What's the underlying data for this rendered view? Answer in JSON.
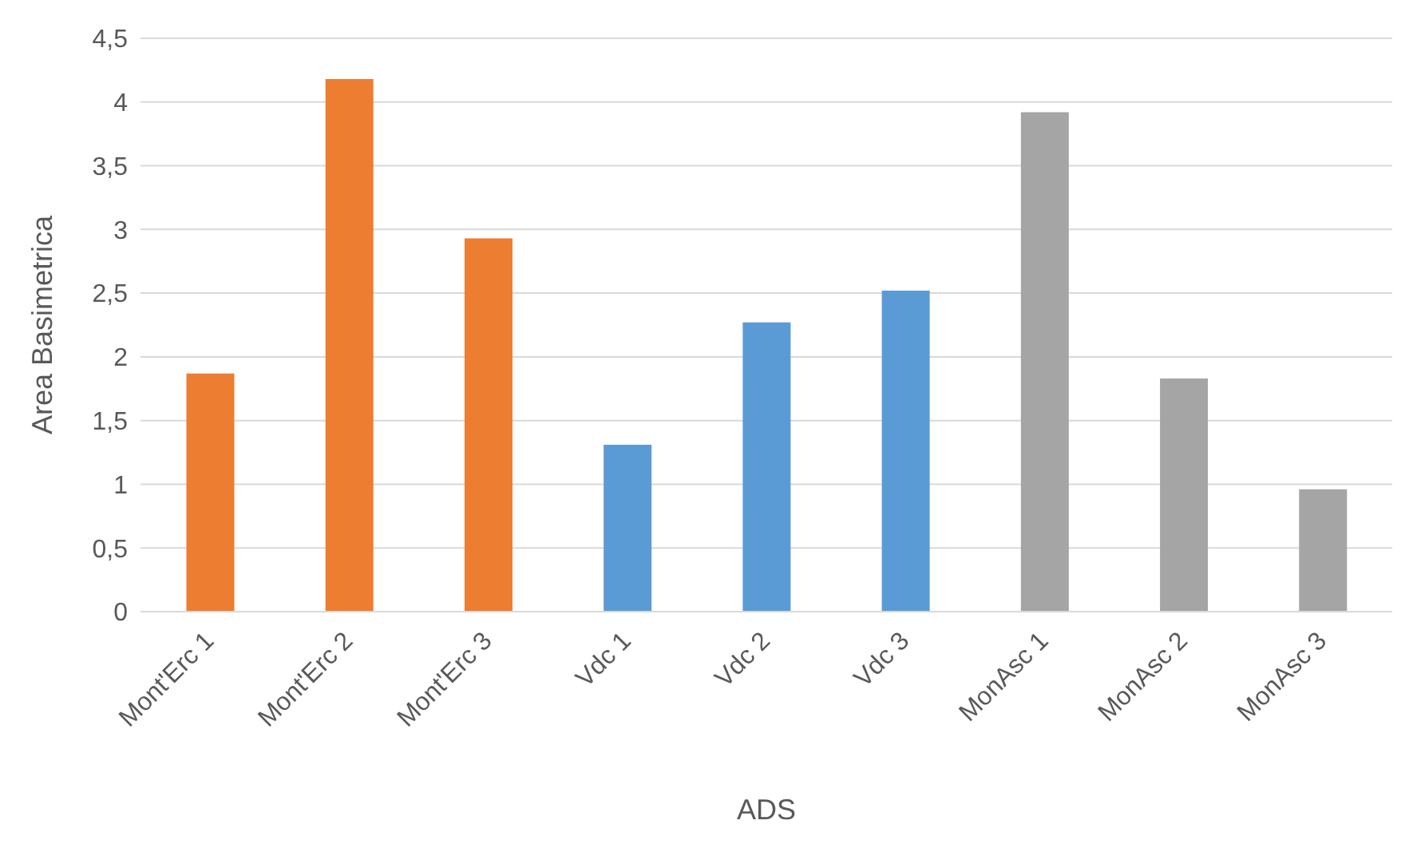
{
  "chart_data": {
    "type": "bar",
    "xlabel": "ADS",
    "ylabel": "Area Basimetrica",
    "categories": [
      "Mont'Erc 1",
      "Mont'Erc 2",
      "Mont'Erc 3",
      "Vdc 1",
      "Vdc 2",
      "Vdc 3",
      "MonAsc 1",
      "MonAsc 2",
      "MonAsc 3"
    ],
    "values": [
      1.87,
      4.18,
      2.93,
      1.31,
      2.27,
      2.52,
      3.92,
      1.83,
      0.96
    ],
    "colors": [
      "#ed7d31",
      "#ed7d31",
      "#ed7d31",
      "#5b9bd5",
      "#5b9bd5",
      "#5b9bd5",
      "#a5a5a5",
      "#a5a5a5",
      "#a5a5a5"
    ],
    "ylim": [
      0,
      4.5
    ],
    "yticks": [
      0,
      {
        "value": 0.5,
        "label": "0,5"
      },
      1,
      {
        "value": 1.5,
        "label": "1,5"
      },
      2,
      {
        "value": 2.5,
        "label": "2,5"
      },
      3,
      {
        "value": 3.5,
        "label": "3,5"
      },
      4,
      {
        "value": 4.5,
        "label": "4,5"
      }
    ],
    "grid": "y",
    "legend": false
  }
}
